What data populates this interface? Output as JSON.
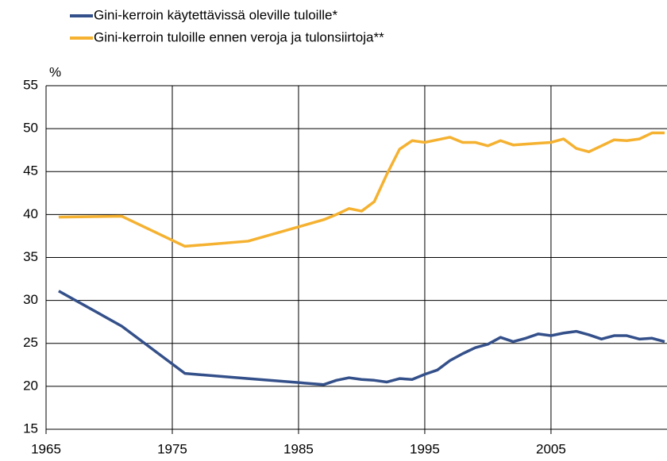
{
  "chart_data": {
    "type": "line",
    "y_label": "%",
    "x": [
      1966,
      1971,
      1976,
      1981,
      1987,
      1988,
      1989,
      1990,
      1991,
      1992,
      1993,
      1994,
      1995,
      1996,
      1997,
      1998,
      1999,
      2000,
      2001,
      2002,
      2003,
      2004,
      2005,
      2006,
      2007,
      2008,
      2009,
      2010,
      2011,
      2012,
      2013,
      2014
    ],
    "series": [
      {
        "name": "Gini-kerroin käytettävissä oleville tuloille*",
        "color": "#34508a",
        "values": [
          31.1,
          27.0,
          21.5,
          20.9,
          20.2,
          20.7,
          21.0,
          20.8,
          20.7,
          20.5,
          20.9,
          20.8,
          21.4,
          21.9,
          23.0,
          23.8,
          24.5,
          24.9,
          25.7,
          25.2,
          25.6,
          26.1,
          25.9,
          26.2,
          26.4,
          26.0,
          25.5,
          25.9,
          25.9,
          25.5,
          25.6,
          25.2
        ]
      },
      {
        "name": "Gini-kerroin tuloille ennen veroja ja tulonsiirtoja**",
        "color": "#f5b130",
        "values": [
          39.7,
          39.8,
          36.3,
          36.9,
          39.4,
          40.0,
          40.7,
          40.4,
          41.5,
          44.7,
          47.6,
          48.6,
          48.4,
          48.7,
          49.0,
          48.4,
          48.4,
          48.0,
          48.6,
          48.1,
          48.2,
          48.3,
          48.4,
          48.8,
          47.7,
          47.3,
          48.0,
          48.7,
          48.6,
          48.8,
          49.5,
          49.5
        ]
      }
    ],
    "xlim": [
      1965,
      2014
    ],
    "xticks": [
      1965,
      1975,
      1985,
      1995,
      2005
    ],
    "ylim": [
      15,
      55
    ],
    "yticks": [
      15,
      20,
      25,
      30,
      35,
      40,
      45,
      50,
      55
    ],
    "grid": true,
    "legend": "top"
  }
}
